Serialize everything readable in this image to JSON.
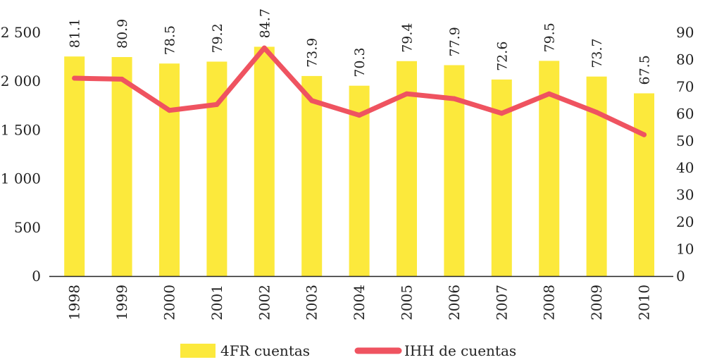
{
  "chart_data": {
    "type": "bar",
    "categories": [
      "1998",
      "1999",
      "2000",
      "2001",
      "2002",
      "2003",
      "2004",
      "2005",
      "2006",
      "2007",
      "2008",
      "2009",
      "2010"
    ],
    "series": [
      {
        "name": "4FR cuentas",
        "type": "bar",
        "axis": "right",
        "values": [
          81.1,
          80.9,
          78.5,
          79.2,
          84.7,
          73.9,
          70.3,
          79.4,
          77.9,
          72.6,
          79.5,
          73.7,
          67.5
        ],
        "color": "#fce93c"
      },
      {
        "name": "IHH de cuentas",
        "type": "line",
        "axis": "left",
        "values": [
          2030,
          2020,
          1700,
          1760,
          2340,
          1800,
          1650,
          1870,
          1820,
          1670,
          1870,
          1680,
          1450
        ],
        "color": "#ef5360"
      }
    ],
    "y_left": {
      "ticks": [
        0,
        500,
        1000,
        1500,
        2000,
        2500
      ],
      "tick_labels": [
        "0",
        "500",
        "1 000",
        "1 500",
        "2 000",
        "2 500"
      ],
      "ylim": [
        0,
        2500
      ]
    },
    "y_right": {
      "ticks": [
        0,
        10,
        20,
        30,
        40,
        50,
        60,
        70,
        80,
        90
      ],
      "tick_labels": [
        "0",
        "10",
        "20",
        "30",
        "40",
        "50",
        "60",
        "70",
        "80",
        "90"
      ],
      "ylim": [
        0,
        90
      ]
    },
    "title": "",
    "xlabel": "",
    "grid": false,
    "legend_position": "bottom"
  },
  "legend": {
    "bar_label": "4FR cuentas",
    "line_label": "IHH de cuentas"
  }
}
